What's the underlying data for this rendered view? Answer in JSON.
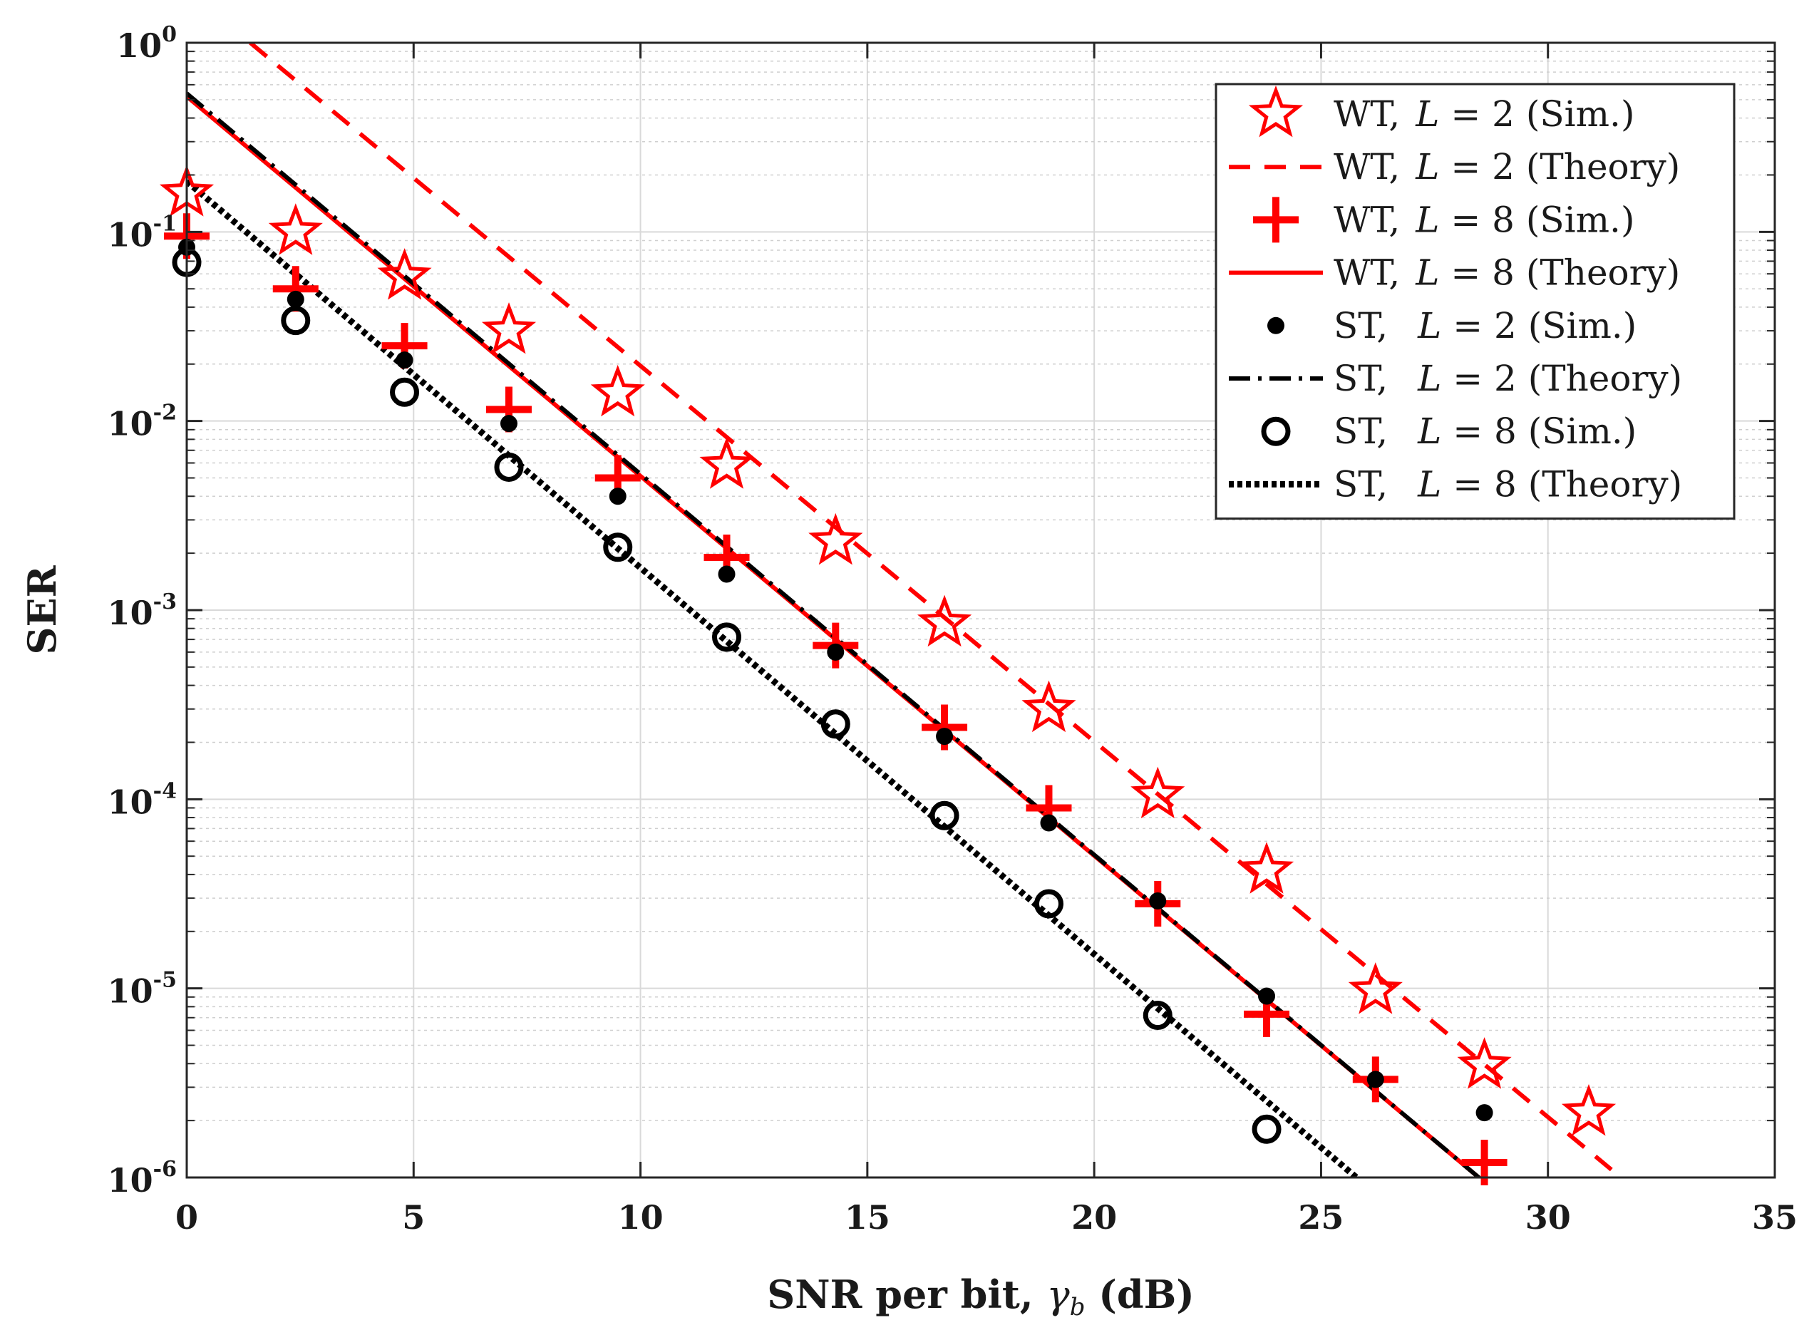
{
  "chart_data": {
    "type": "line",
    "title": "",
    "xlabel": "SNR per bit, γb (dB)",
    "xlabel_parts": {
      "prefix": "SNR per bit, ",
      "symbol": "γ",
      "subscript": "b",
      "suffix": " (dB)"
    },
    "ylabel": "SER",
    "xlim": [
      0,
      35
    ],
    "ylim": [
      1e-06,
      1
    ],
    "yscale": "log",
    "grid": true,
    "legend_position": "top-right",
    "x_ticks": [
      "0",
      "5",
      "10",
      "15",
      "20",
      "25",
      "30",
      "35"
    ],
    "y_ticks": [
      {
        "base": "10",
        "exp": "0"
      },
      {
        "base": "10",
        "exp": "-1"
      },
      {
        "base": "10",
        "exp": "-2"
      },
      {
        "base": "10",
        "exp": "-3"
      },
      {
        "base": "10",
        "exp": "-4"
      },
      {
        "base": "10",
        "exp": "-5"
      },
      {
        "base": "10",
        "exp": "-6"
      }
    ],
    "series": [
      {
        "name": "WT, L = 2 (Sim.)",
        "legend": {
          "prefix": "WT,",
          "var": "L",
          "eq": " = 2 (Sim.)"
        },
        "kind": "marker",
        "marker": "star",
        "color": "#ff0000",
        "x": [
          0,
          2.4,
          4.8,
          7.1,
          9.5,
          11.9,
          14.3,
          16.7,
          19.0,
          21.4,
          23.8,
          26.2,
          28.6,
          30.9
        ],
        "y": [
          0.16,
          0.1,
          0.058,
          0.03,
          0.014,
          0.0058,
          0.0023,
          0.00085,
          0.0003,
          0.000105,
          4.2e-05,
          9.7e-06,
          3.9e-06,
          2.2e-06
        ]
      },
      {
        "name": "WT, L = 2 (Theory)",
        "legend": {
          "prefix": "WT,",
          "var": "L",
          "eq": " = 2 (Theory)"
        },
        "kind": "line",
        "dash": "dashed",
        "color": "#ff0000",
        "x": [
          1.4,
          31.4
        ],
        "y": [
          1.0,
          1.1e-06
        ]
      },
      {
        "name": "WT, L = 8 (Sim.)",
        "legend": {
          "prefix": "WT,",
          "var": "L",
          "eq": " = 8 (Sim.)"
        },
        "kind": "marker",
        "marker": "plus",
        "color": "#ff0000",
        "x": [
          0,
          2.4,
          4.8,
          7.1,
          9.5,
          11.9,
          14.3,
          16.7,
          19.0,
          21.4,
          23.8,
          26.2,
          28.6
        ],
        "y": [
          0.095,
          0.05,
          0.025,
          0.0115,
          0.005,
          0.0019,
          0.00065,
          0.00024,
          9e-05,
          2.8e-05,
          7.3e-06,
          3.3e-06,
          1.2e-06
        ]
      },
      {
        "name": "WT, L = 8 (Theory)",
        "legend": {
          "prefix": "WT,",
          "var": "L",
          "eq": " = 8 (Theory)"
        },
        "kind": "line",
        "dash": "solid",
        "color": "#ff0000",
        "x": [
          0,
          28.5
        ],
        "y": [
          0.52,
          9.9e-07
        ]
      },
      {
        "name": "ST,  L = 2 (Sim.)",
        "legend": {
          "prefix": "ST,",
          "var": "L",
          "eq": " = 2 (Sim.)"
        },
        "kind": "marker",
        "marker": "dot",
        "color": "#000000",
        "x": [
          0,
          2.4,
          4.8,
          7.1,
          9.5,
          11.9,
          14.3,
          16.7,
          19.0,
          21.4,
          23.8,
          26.2,
          28.6
        ],
        "y": [
          0.083,
          0.044,
          0.021,
          0.0097,
          0.004,
          0.00155,
          0.0006,
          0.000215,
          7.5e-05,
          2.9e-05,
          9.1e-06,
          3.3e-06,
          2.2e-06
        ]
      },
      {
        "name": "ST,  L = 2 (Theory)",
        "legend": {
          "prefix": "ST,",
          "var": "L",
          "eq": " = 2 (Theory)"
        },
        "kind": "line",
        "dash": "dashdot",
        "color": "#000000",
        "x": [
          0,
          28.5
        ],
        "y": [
          0.54,
          9.9e-07
        ]
      },
      {
        "name": "ST,  L = 8 (Sim.)",
        "legend": {
          "prefix": "ST,",
          "var": "L",
          "eq": " = 8 (Sim.)"
        },
        "kind": "marker",
        "marker": "circle",
        "color": "#000000",
        "x": [
          0,
          2.4,
          4.8,
          7.1,
          9.5,
          11.9,
          14.3,
          16.7,
          19.0,
          21.4,
          23.8
        ],
        "y": [
          0.069,
          0.034,
          0.0142,
          0.0057,
          0.00215,
          0.00072,
          0.00025,
          8.2e-05,
          2.8e-05,
          7.2e-06,
          1.8e-06
        ]
      },
      {
        "name": "ST,  L = 8 (Theory)",
        "legend": {
          "prefix": "ST,",
          "var": "L",
          "eq": " = 8 (Theory)"
        },
        "kind": "line",
        "dash": "dotted",
        "color": "#000000",
        "x": [
          0,
          25.8
        ],
        "y": [
          0.185,
          9.9e-07
        ]
      }
    ]
  }
}
